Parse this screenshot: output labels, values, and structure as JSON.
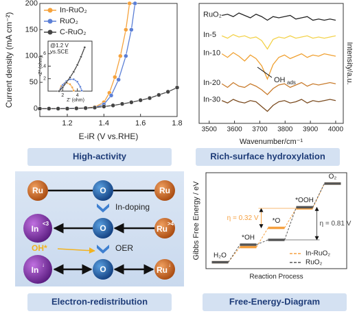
{
  "chart_data": [
    {
      "type": "line",
      "xlabel": "E-iR (V vs.RHE)",
      "ylabel": "Current density (mA cm⁻²)",
      "xlim": [
        1.05,
        1.8
      ],
      "ylim": [
        -15,
        200
      ],
      "xticks": [
        1.2,
        1.4,
        1.6,
        1.8
      ],
      "yticks": [
        0,
        50,
        100,
        150,
        200
      ],
      "legend": "upper left",
      "series": [
        {
          "name": "In-RuO₂",
          "color": "#f5a23c",
          "x": [
            1.05,
            1.1,
            1.15,
            1.2,
            1.25,
            1.3,
            1.35,
            1.4,
            1.43,
            1.46,
            1.49,
            1.52,
            1.54
          ],
          "values": [
            0,
            0,
            0,
            0.2,
            0.5,
            1,
            3,
            12,
            30,
            60,
            100,
            150,
            200
          ]
        },
        {
          "name": "RuO₂",
          "color": "#5b7fd6",
          "x": [
            1.05,
            1.1,
            1.15,
            1.2,
            1.25,
            1.3,
            1.35,
            1.4,
            1.44,
            1.48,
            1.52,
            1.55,
            1.57
          ],
          "values": [
            0,
            0,
            0,
            0.2,
            0.5,
            1,
            2,
            8,
            25,
            55,
            100,
            150,
            200
          ]
        },
        {
          "name": "C-RuO₂",
          "color": "#444444",
          "x": [
            1.05,
            1.1,
            1.15,
            1.2,
            1.25,
            1.3,
            1.35,
            1.4,
            1.45,
            1.5,
            1.55,
            1.6,
            1.65,
            1.7,
            1.75,
            1.8
          ],
          "values": [
            0,
            0,
            0,
            0,
            0.5,
            1,
            2,
            4,
            6,
            9,
            12,
            16,
            20,
            26,
            32,
            40
          ]
        }
      ]
    },
    {
      "type": "line",
      "note": [
        "@1.2 V",
        "vs.SCE"
      ],
      "xlabel": "Z' (ohm)",
      "ylabel": "-Z'' (ohm)",
      "xlim": [
        0,
        6
      ],
      "ylim": [
        0,
        8
      ],
      "xticks": [
        2,
        4
      ],
      "yticks": [
        2,
        4,
        6
      ],
      "series": [
        {
          "color": "#f5a23c",
          "x": [
            1.5,
            1.8,
            2.2,
            2.6,
            3.0,
            3.3,
            3.5
          ],
          "values": [
            0,
            0.8,
            1.2,
            1.3,
            1.1,
            0.6,
            0.1
          ]
        },
        {
          "color": "#5b7fd6",
          "x": [
            1.5,
            2,
            2.5,
            3,
            3.5,
            4,
            4.4,
            4.6
          ],
          "values": [
            0,
            1.0,
            1.6,
            1.9,
            1.9,
            1.5,
            0.7,
            0.1
          ]
        },
        {
          "color": "#444444",
          "x": [
            1.5,
            2,
            2.5,
            3,
            3.5,
            4,
            4.5,
            5
          ],
          "values": [
            0,
            0.6,
            1.4,
            2.2,
            3.1,
            4.2,
            5.5,
            7
          ]
        }
      ]
    },
    {
      "type": "line",
      "xlabel": "Wavenumber/cm⁻¹",
      "ylabel": "Intensity/a.u.",
      "xlim": [
        3460,
        4030
      ],
      "ylim": [
        0,
        10
      ],
      "xticks": [
        3500,
        3600,
        3700,
        3800,
        3900,
        4000
      ],
      "annotation": {
        "main": "OH",
        "sub": "ads"
      },
      "x": [
        3550,
        3572.5,
        3595,
        3617.5,
        3640,
        3662.5,
        3685,
        3707.5,
        3730,
        3752.5,
        3775,
        3797.5,
        3820,
        3842.5,
        3865,
        3887.5,
        3910,
        3932.5,
        3955,
        3977.5,
        4000
      ],
      "series": [
        {
          "name": "RuO₂",
          "color": "#222222",
          "values": [
            9.0,
            9.1,
            8.9,
            9.2,
            9.0,
            8.8,
            9.1,
            8.9,
            8.6,
            8.9,
            8.8,
            8.9,
            9.0,
            8.7,
            8.8,
            8.9,
            8.6,
            8.7,
            8.6,
            8.7,
            8.6
          ]
        },
        {
          "name": "In-5",
          "color": "#f3d24a",
          "values": [
            7.3,
            7.1,
            7.4,
            7.2,
            7.3,
            7.1,
            7.2,
            6.9,
            6.2,
            7.0,
            7.2,
            7.1,
            7.3,
            7.1,
            7.2,
            7.3,
            7.1,
            7.2,
            7.1,
            7.2,
            7.3
          ]
        },
        {
          "name": "In-10",
          "color": "#f0a030",
          "values": [
            5.8,
            5.5,
            5.9,
            5.6,
            5.2,
            5.7,
            5.4,
            4.8,
            3.7,
            4.9,
            5.5,
            5.7,
            5.4,
            5.6,
            5.8,
            5.5,
            5.7,
            5.6,
            5.8,
            5.7,
            5.6
          ]
        },
        {
          "name": "In-20",
          "color": "#c87a2a",
          "values": [
            3.3,
            3.0,
            3.4,
            3.1,
            3.0,
            3.3,
            3.1,
            2.8,
            2.4,
            2.9,
            3.2,
            3.3,
            3.0,
            3.2,
            3.4,
            3.1,
            3.3,
            3.2,
            3.3,
            3.4,
            3.3
          ]
        },
        {
          "name": "In-30",
          "color": "#7a4a1e",
          "values": [
            1.9,
            1.7,
            2.0,
            1.8,
            1.7,
            1.9,
            1.8,
            1.4,
            1.0,
            1.5,
            1.8,
            1.9,
            1.7,
            1.8,
            2.0,
            1.7,
            1.9,
            1.8,
            1.9,
            2.0,
            1.9
          ]
        }
      ]
    },
    {
      "type": "step",
      "xlabel": "Reaction Process",
      "ylabel": "Gibbs Free Energy / eV",
      "categories": [
        "H₂O",
        "*OH",
        "*O",
        "*OOH",
        "O₂"
      ],
      "ylim": [
        -0.4,
        5.6
      ],
      "legend": "lower right",
      "annotations": [
        "η = 0.32 V",
        "η = 0.81 V"
      ],
      "series": [
        {
          "name": "In-RuO₂",
          "color": "#f5a040",
          "values": [
            0,
            0.95,
            2.15,
            3.37,
            4.92
          ]
        },
        {
          "name": "RuO₂",
          "color": "#555555",
          "values": [
            0,
            1.1,
            1.4,
            3.44,
            4.92
          ]
        }
      ]
    }
  ],
  "captions": [
    "High-activity",
    "Rich-surface hydroxylation",
    "Electron-redistribution",
    "Free-Energy-Diagram"
  ],
  "diagram": {
    "rows": [
      {
        "nodes": [
          {
            "label": "Ru"
          },
          {
            "label": "O"
          },
          {
            "label": "Ru"
          }
        ]
      },
      {
        "nodes": [
          {
            "label": "In",
            "sup": "<3"
          },
          {
            "label": "O"
          },
          {
            "label": "Ru",
            "sup": ">4"
          }
        ]
      },
      {
        "nodes": [
          {
            "label": "In",
            "sup": "↓"
          },
          {
            "label": "O"
          },
          {
            "label": "Ru",
            "sup": "↓"
          }
        ]
      }
    ],
    "steps": [
      "In-doping",
      "OER"
    ],
    "adsorbate": "OH*"
  }
}
